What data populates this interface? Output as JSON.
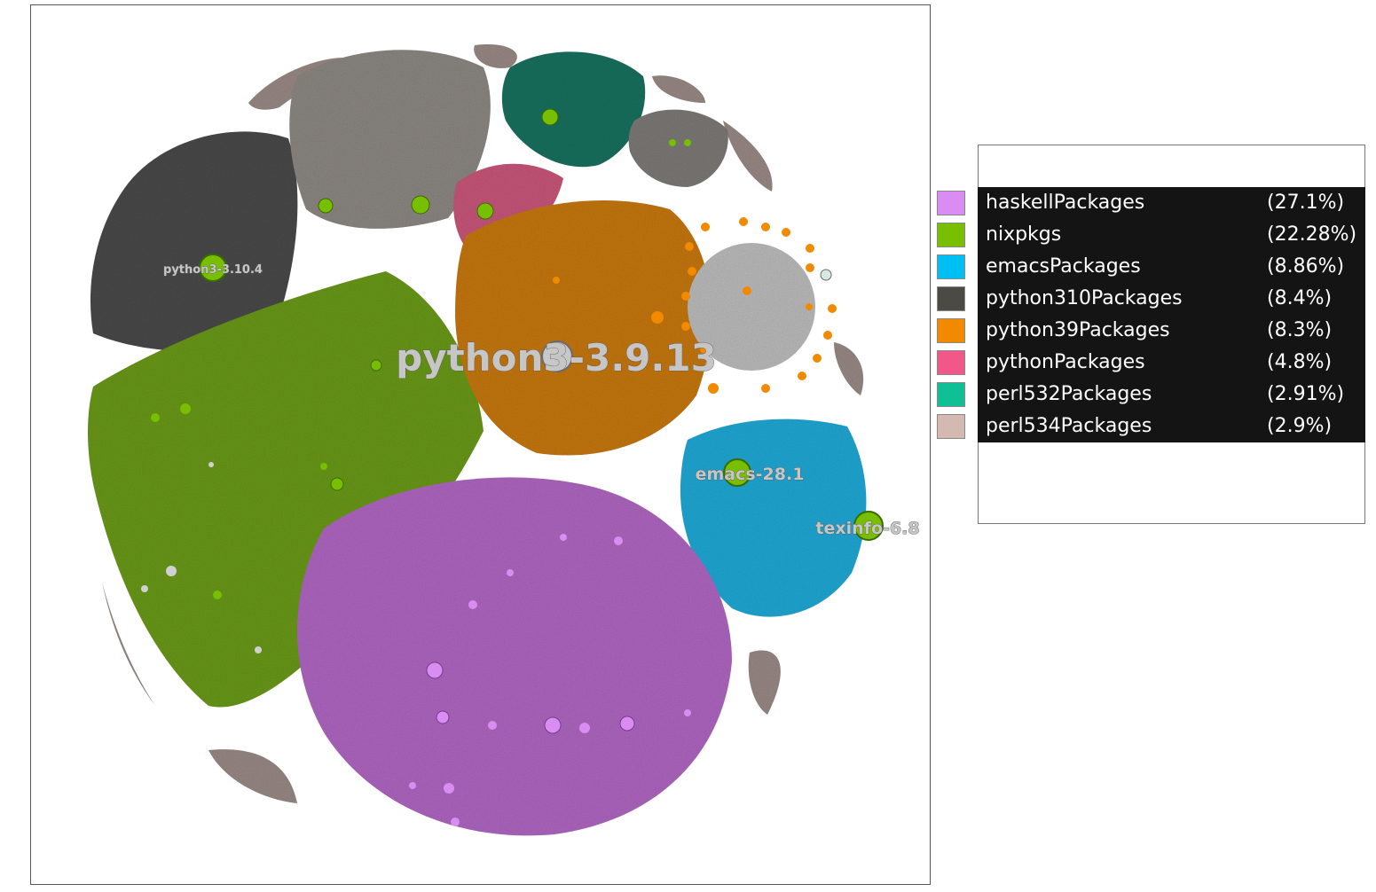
{
  "legend": {
    "items": [
      {
        "label": "haskellPackages",
        "percent": "(27.1%)",
        "color": "#d98cf2"
      },
      {
        "label": "nixpkgs",
        "percent": "(22.28%)",
        "color": "#77bf00"
      },
      {
        "label": "emacsPackages",
        "percent": "(8.86%)",
        "color": "#00bff2"
      },
      {
        "label": "python310Packages",
        "percent": "(8.4%)",
        "color": "#4b4a44"
      },
      {
        "label": "python39Packages",
        "percent": "(8.3%)",
        "color": "#f28a00"
      },
      {
        "label": "pythonPackages",
        "percent": "(4.8%)",
        "color": "#f2578a"
      },
      {
        "label": "perl532Packages",
        "percent": "(2.91%)",
        "color": "#0fbf95"
      },
      {
        "label": "perl534Packages",
        "percent": "(2.9%)",
        "color": "#d3b9b2"
      }
    ]
  },
  "graph": {
    "node_labels": {
      "python39": "python3-3.9.13",
      "python310": "python3-3.10.4",
      "emacs": "emacs-28.1",
      "texinfo": "texinfo-6.8"
    }
  }
}
